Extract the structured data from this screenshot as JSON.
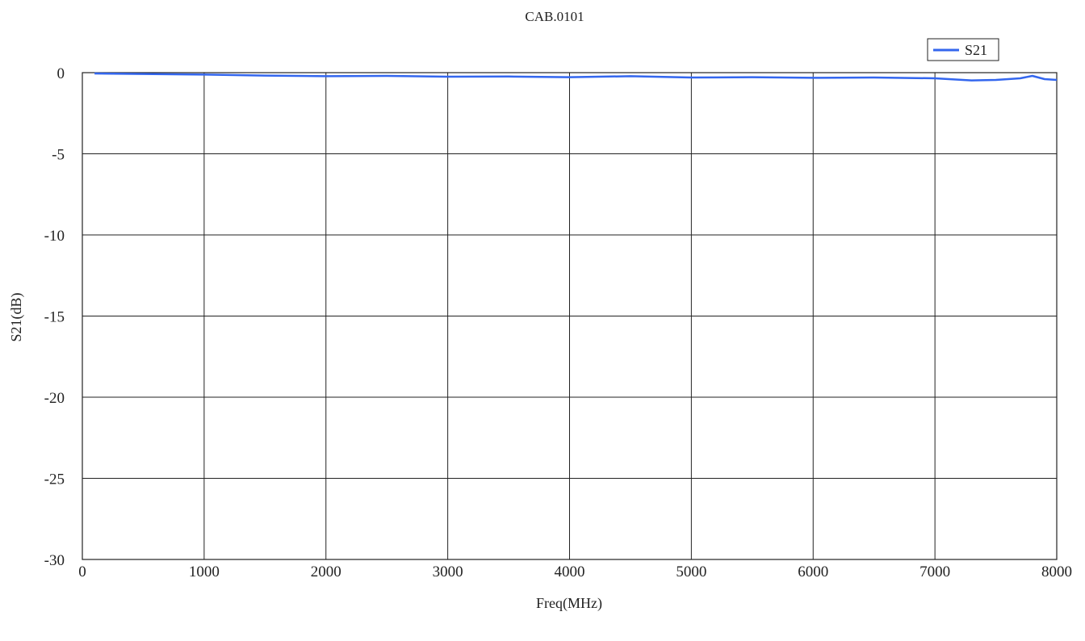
{
  "chart_data": {
    "type": "line",
    "title": "CAB.0101",
    "xlabel": "Freq(MHz)",
    "ylabel": "S21(dB)",
    "xlim": [
      0,
      8000
    ],
    "ylim": [
      -30,
      0
    ],
    "x_ticks": [
      0,
      1000,
      2000,
      3000,
      4000,
      5000,
      6000,
      7000,
      8000
    ],
    "y_ticks": [
      0,
      -5,
      -10,
      -15,
      -20,
      -25,
      -30
    ],
    "x_tick_labels": [
      "0",
      "1000",
      "2000",
      "3000",
      "4000",
      "5000",
      "6000",
      "7000",
      "8000"
    ],
    "y_tick_labels": [
      "0",
      "-5",
      "-10",
      "-15",
      "-20",
      "-25",
      "-30"
    ],
    "grid": true,
    "legend_position": "top-right",
    "series": [
      {
        "name": "S21",
        "color": "#3366ee",
        "x": [
          100,
          500,
          1000,
          1500,
          2000,
          2500,
          3000,
          3500,
          4000,
          4500,
          5000,
          5500,
          6000,
          6500,
          7000,
          7300,
          7500,
          7700,
          7800,
          7900,
          8000
        ],
        "y": [
          -0.05,
          -0.08,
          -0.12,
          -0.18,
          -0.22,
          -0.2,
          -0.25,
          -0.24,
          -0.28,
          -0.22,
          -0.3,
          -0.28,
          -0.32,
          -0.3,
          -0.35,
          -0.48,
          -0.45,
          -0.35,
          -0.2,
          -0.4,
          -0.45
        ]
      }
    ]
  }
}
